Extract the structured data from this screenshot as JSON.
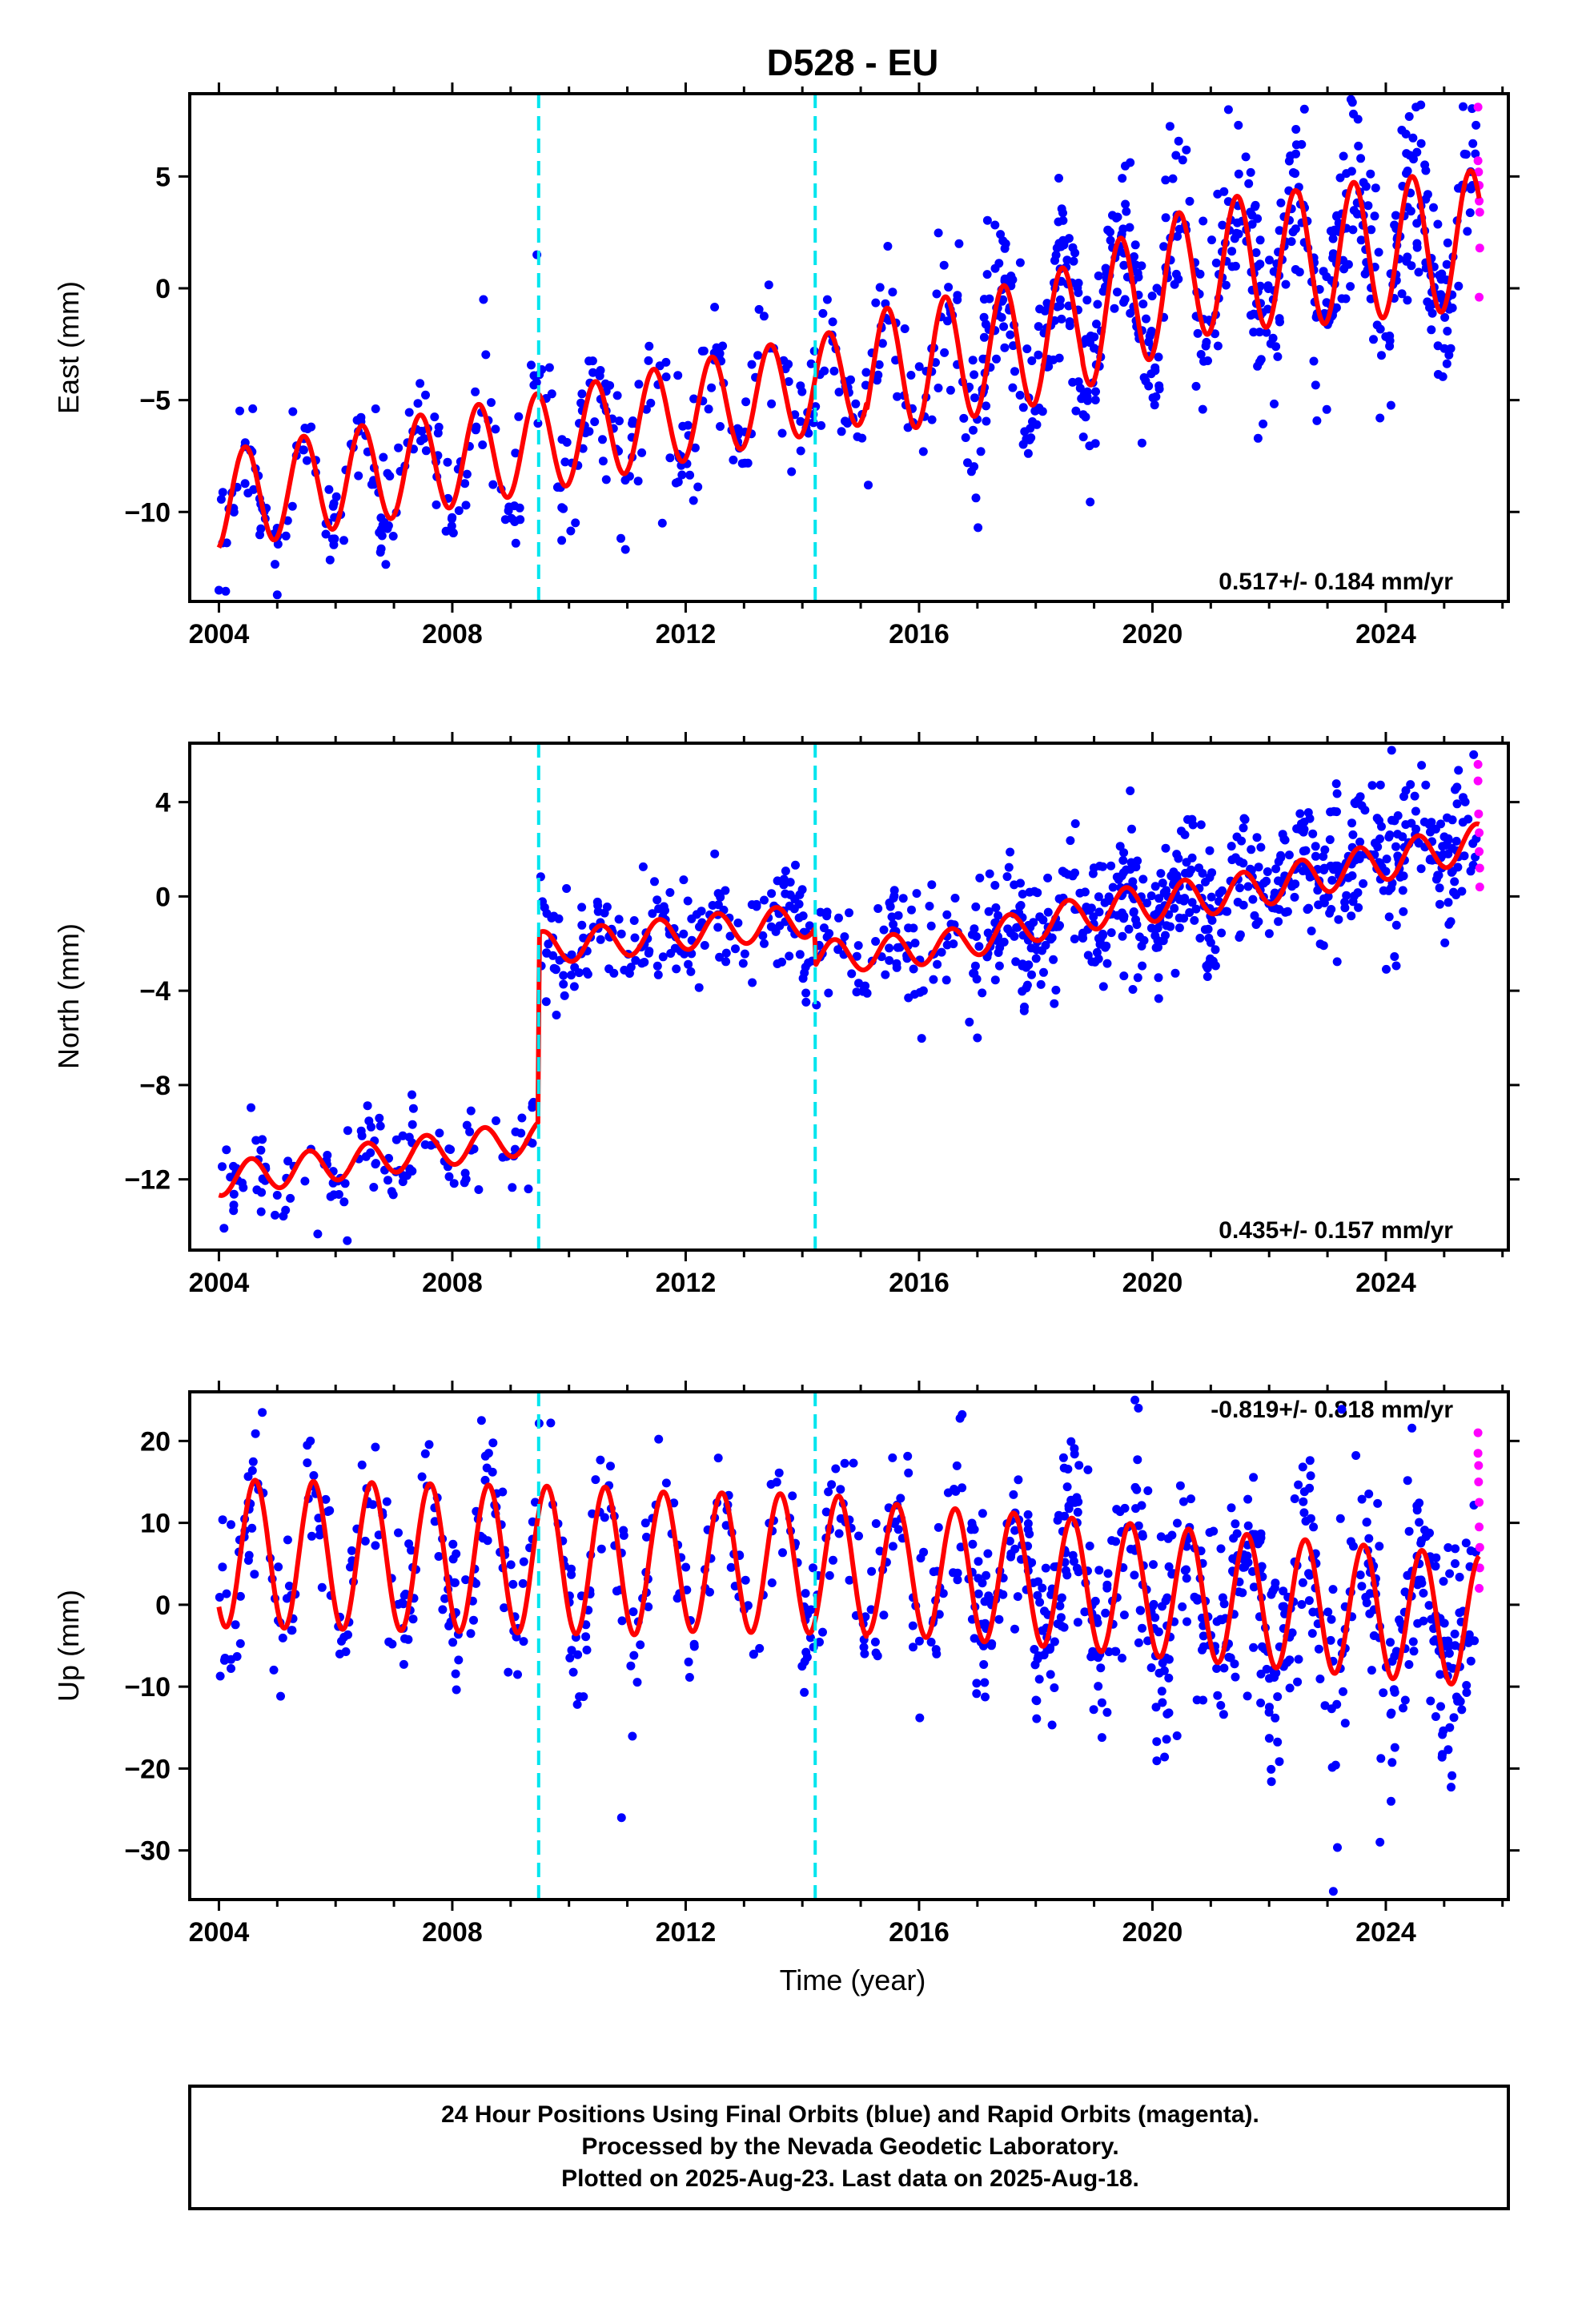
{
  "title": "D528 - EU",
  "colors": {
    "final": "#0000ff",
    "rapid": "#ff00ff",
    "model": "#ff0000",
    "offsets": "#00e5ee"
  },
  "chart_data": [
    {
      "type": "scatter",
      "component": "East",
      "ylabel": "East (mm)",
      "xlim": [
        2003.5,
        2026.1
      ],
      "ylim": [
        -14,
        8.7
      ],
      "xticks": [
        2004,
        2008,
        2012,
        2016,
        2020,
        2024
      ],
      "yticks": [
        5,
        0,
        -5,
        -10
      ],
      "ytick_labels": [
        "5",
        "0",
        "−5",
        "−10"
      ],
      "rate_text": "0.517+/- 0.184 mm/yr",
      "rate_position": "bottom-right",
      "offset_epochs": [
        2009.48,
        2014.22
      ],
      "model": {
        "offset": -9.5,
        "rate": 0.517,
        "ref_year": 2004.0,
        "annual_amplitude": [
          2.2,
          2.2,
          2.2,
          2.8,
          3.0,
          3.1
        ],
        "annual_peak_phase": 0.45,
        "steps": [
          {
            "epoch": 2009.48,
            "size": 0
          },
          {
            "epoch": 2014.22,
            "size": 2.8
          }
        ],
        "knots": [
          [
            2004.0,
            -9.5
          ],
          [
            2009.48,
            -6.9
          ],
          [
            2014.22,
            -4.3
          ],
          [
            2018.0,
            -2.4
          ],
          [
            2021.0,
            1.0
          ],
          [
            2025.6,
            2.2
          ]
        ]
      },
      "scatter_sd": [
        1.3,
        1.3,
        1.3,
        1.8,
        2.0,
        2.0
      ],
      "rapid_points": [
        [
          2025.58,
          8.1
        ],
        [
          2025.58,
          5.7
        ],
        [
          2025.59,
          5.2
        ],
        [
          2025.6,
          4.6
        ],
        [
          2025.6,
          3.9
        ],
        [
          2025.61,
          3.4
        ],
        [
          2025.61,
          1.8
        ],
        [
          2025.6,
          -0.4
        ]
      ],
      "outliers": [
        [
          2004.0,
          -13.5
        ],
        [
          2011.6,
          -10.5
        ],
        [
          2023.9,
          -5.8
        ],
        [
          2024.6,
          8.2
        ],
        [
          2009.45,
          1.5
        ]
      ]
    },
    {
      "type": "scatter",
      "component": "North",
      "ylabel": "North (mm)",
      "xlim": [
        2003.5,
        2026.1
      ],
      "ylim": [
        -15,
        6.5
      ],
      "xticks": [
        2004,
        2008,
        2012,
        2016,
        2020,
        2024
      ],
      "yticks": [
        4,
        0,
        -4,
        -8,
        -12
      ],
      "ytick_labels": [
        "4",
        "0",
        "−4",
        "−8",
        "−12"
      ],
      "rate_text": "0.435+/- 0.157 mm/yr",
      "rate_position": "bottom-right",
      "offset_epochs": [
        2009.48,
        2014.22
      ],
      "model": {
        "annual_amplitude": [
          0.7,
          0.7,
          0.7,
          0.7,
          0.8,
          0.8
        ],
        "annual_peak_phase": 0.55,
        "knots": [
          [
            2004.0,
            -12.0
          ],
          [
            2009.47,
            -10.2
          ],
          [
            2009.49,
            -2.2
          ],
          [
            2014.21,
            -1.0
          ],
          [
            2014.23,
            -2.6
          ],
          [
            2016.5,
            -2.1
          ],
          [
            2019.0,
            -0.6
          ],
          [
            2021.5,
            0.2
          ],
          [
            2024.0,
            1.5
          ],
          [
            2025.6,
            2.3
          ]
        ]
      },
      "scatter_sd": [
        1.1,
        1.1,
        1.1,
        1.2,
        1.4,
        1.5
      ],
      "rapid_points": [
        [
          2025.58,
          5.6
        ],
        [
          2025.58,
          4.9
        ],
        [
          2025.59,
          3.5
        ],
        [
          2025.6,
          2.7
        ],
        [
          2025.6,
          1.9
        ],
        [
          2025.61,
          1.2
        ],
        [
          2025.61,
          0.4
        ]
      ],
      "outliers": [
        [
          2006.2,
          -14.6
        ],
        [
          2024.1,
          6.2
        ],
        [
          2017.0,
          -6.0
        ]
      ]
    },
    {
      "type": "scatter",
      "component": "Up",
      "ylabel": "Up (mm)",
      "xlabel": "Time (year)",
      "xlim": [
        2003.5,
        2026.1
      ],
      "ylim": [
        -36,
        26
      ],
      "xticks": [
        2004,
        2008,
        2012,
        2016,
        2020,
        2024
      ],
      "yticks": [
        20,
        10,
        0,
        -10,
        -20,
        -30
      ],
      "ytick_labels": [
        "20",
        "10",
        "0",
        "−10",
        "−20",
        "−30"
      ],
      "rate_text": "-0.819+/- 0.818 mm/yr",
      "rate_position": "top-right",
      "offset_epochs": [
        2009.48,
        2014.22
      ],
      "model": {
        "annual_amplitude": [
          9.0,
          9.0,
          8.5,
          8.0,
          8.0,
          8.0
        ],
        "annual_peak_phase": 0.62,
        "knots": [
          [
            2004.0,
            6.3
          ],
          [
            2009.48,
            5.5
          ],
          [
            2014.22,
            5.0
          ],
          [
            2018.0,
            3.0
          ],
          [
            2021.0,
            1.0
          ],
          [
            2025.6,
            -2.0
          ]
        ]
      },
      "scatter_sd": [
        4.5,
        4.5,
        4.5,
        5.5,
        6.5,
        7.0
      ],
      "rapid_points": [
        [
          2025.58,
          21.0
        ],
        [
          2025.58,
          18.5
        ],
        [
          2025.59,
          17.0
        ],
        [
          2025.59,
          15.0
        ],
        [
          2025.6,
          12.5
        ],
        [
          2025.6,
          9.5
        ],
        [
          2025.61,
          7.0
        ],
        [
          2025.61,
          4.5
        ],
        [
          2025.6,
          2.0
        ]
      ],
      "outliers": [
        [
          2010.9,
          -26.0
        ],
        [
          2023.1,
          -35.0
        ],
        [
          2019.7,
          25.0
        ],
        [
          2008.5,
          22.5
        ],
        [
          2023.9,
          -29.0
        ]
      ]
    }
  ],
  "footer": {
    "line1": "24 Hour Positions Using Final Orbits (blue) and Rapid Orbits (magenta).",
    "line2": "Processed by the Nevada Geodetic Laboratory.",
    "line3": "Plotted on 2025-Aug-23. Last data on 2025-Aug-18."
  }
}
